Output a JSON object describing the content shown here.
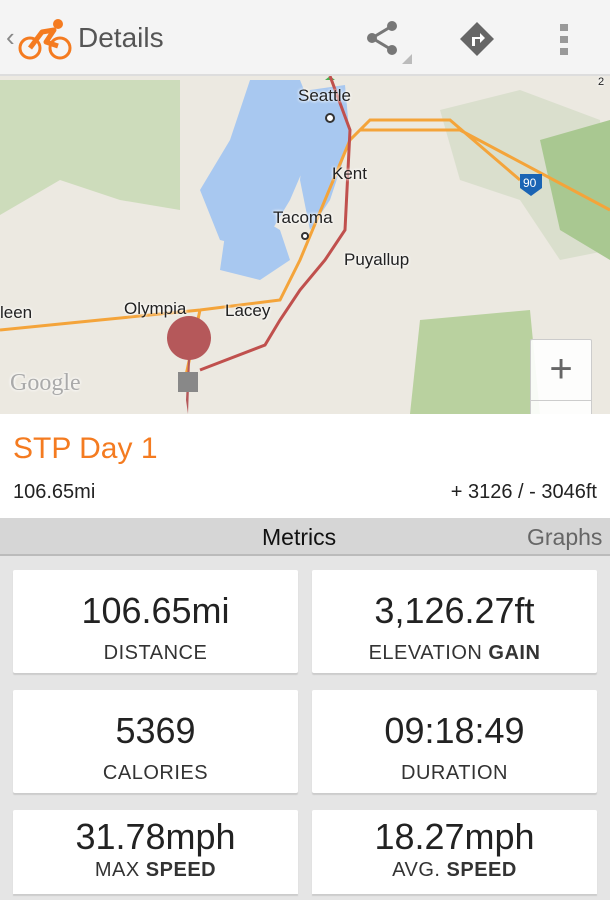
{
  "header": {
    "title": "Details",
    "icons": [
      "back-chevron-icon",
      "cyclist-logo-icon",
      "share-icon",
      "directions-icon",
      "overflow-menu-icon"
    ]
  },
  "map": {
    "labels": {
      "seattle": "Seattle",
      "kent": "Kent",
      "tacoma": "Tacoma",
      "puyallup": "Puyallup",
      "olympia": "Olympia",
      "lacey": "Lacey",
      "aberdeen": "leen",
      "google": "Google",
      "i90": "90",
      "hwy2": "2"
    },
    "zoom_in": "+",
    "zoom_out": "−",
    "route_color": "#c0504d"
  },
  "route": {
    "name": "STP Day 1",
    "distance": "106.65mi",
    "elevation": "+ 3126 / - 3046ft"
  },
  "tabs": {
    "metrics": "Metrics",
    "graphs": "Graphs"
  },
  "metrics": [
    {
      "value": "106.65mi",
      "label": "DISTANCE",
      "bold": ""
    },
    {
      "value": "3,126.27ft",
      "label": "ELEVATION ",
      "bold": "GAIN"
    },
    {
      "value": "5369",
      "label": "CALORIES",
      "bold": ""
    },
    {
      "value": "09:18:49",
      "label": "DURATION",
      "bold": ""
    },
    {
      "value": "31.78mph",
      "label": "MAX ",
      "bold": "SPEED"
    },
    {
      "value": "18.27mph",
      "label": "AVG. ",
      "bold": "SPEED"
    }
  ],
  "colors": {
    "accent": "#f47b20"
  }
}
